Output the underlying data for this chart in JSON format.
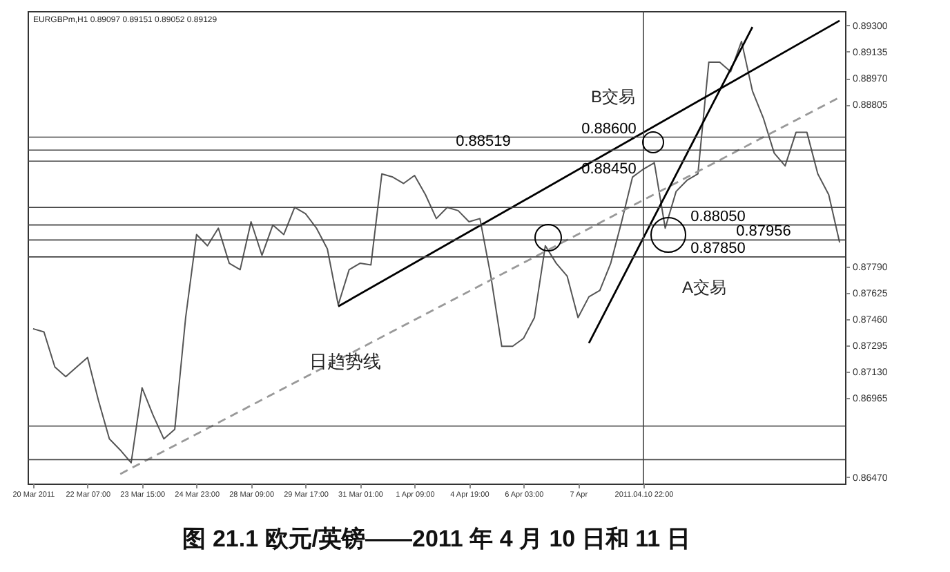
{
  "chart_data": {
    "type": "line",
    "title": "图 21.1 欧元/英镑——2011 年 4 月 10 日和 11 日",
    "categories": [
      "20 Mar 2011",
      null,
      null,
      null,
      null,
      "22 Mar 07:00",
      null,
      null,
      null,
      null,
      "23 Mar 15:00",
      null,
      null,
      null,
      null,
      "24 Mar 23:00",
      null,
      null,
      null,
      null,
      "28 Mar 09:00",
      null,
      null,
      null,
      null,
      "29 Mar 17:00",
      null,
      null,
      null,
      null,
      "31 Mar 01:00",
      null,
      null,
      null,
      null,
      "1 Apr 09:00",
      null,
      null,
      null,
      null,
      "4 Apr 19:00",
      null,
      null,
      null,
      null,
      "6 Apr 03:00",
      null,
      null,
      null,
      null,
      "7 Apr",
      null,
      null,
      null,
      null,
      null,
      "2011.04.10 22:00",
      null,
      null,
      null,
      null,
      null,
      null,
      null,
      null,
      null,
      null,
      null,
      null,
      null,
      null,
      null,
      null,
      null,
      null
    ],
    "series": [
      {
        "color": "#555555",
        "values": [
          0.874,
          0.8738,
          0.8716,
          0.871,
          0.8716,
          0.8722,
          0.8695,
          0.8671,
          0.8664,
          0.8656,
          0.8703,
          0.8686,
          0.8671,
          0.8677,
          0.8747,
          0.8799,
          0.8792,
          0.8803,
          0.8781,
          0.8777,
          0.8807,
          0.8786,
          0.8805,
          0.8799,
          0.8816,
          0.8812,
          0.8803,
          0.879,
          0.8755,
          0.8777,
          0.8781,
          0.878,
          0.8837,
          0.8835,
          0.8831,
          0.8836,
          0.8824,
          0.8809,
          0.8816,
          0.8814,
          0.8807,
          0.8809,
          0.8773,
          0.8729,
          0.8729,
          0.8734,
          0.8747,
          0.8792,
          0.8781,
          0.8773,
          0.8747,
          0.876,
          0.8764,
          0.8781,
          0.8807,
          0.8835,
          0.884,
          0.8844,
          0.8803,
          0.8826,
          0.8833,
          0.8837,
          0.8907,
          0.8907,
          0.8901,
          0.892,
          0.8889,
          0.8872,
          0.885,
          0.8842,
          0.8863,
          0.8863,
          0.8837,
          0.8824,
          0.8794
        ]
      },
      {
        "color": "#999999",
        "line_style": "dashed",
        "values": [
          null,
          null,
          null,
          null,
          null,
          null,
          null,
          null,
          0.8649,
          null,
          null,
          null,
          null,
          null,
          null,
          null,
          null,
          null,
          null,
          null,
          null,
          null,
          null,
          null,
          null,
          null,
          null,
          null,
          null,
          null,
          null,
          null,
          null,
          null,
          null,
          null,
          null,
          null,
          null,
          null,
          null,
          null,
          null,
          null,
          null,
          null,
          null,
          null,
          null,
          null,
          null,
          null,
          null,
          null,
          null,
          null,
          null,
          null,
          null,
          null,
          null,
          null,
          null,
          null,
          null,
          null,
          null,
          null,
          null,
          null,
          null,
          null,
          null,
          null,
          0.8885
        ]
      },
      {
        "color": "#000000",
        "values": [
          null,
          null,
          null,
          null,
          null,
          null,
          null,
          null,
          null,
          null,
          null,
          null,
          null,
          null,
          null,
          null,
          null,
          null,
          null,
          null,
          null,
          null,
          null,
          null,
          null,
          null,
          null,
          null,
          0.8754,
          null,
          null,
          null,
          null,
          null,
          null,
          null,
          null,
          null,
          null,
          null,
          null,
          null,
          null,
          null,
          null,
          null,
          null,
          null,
          null,
          null,
          null,
          null,
          null,
          null,
          null,
          null,
          null,
          null,
          null,
          null,
          null,
          null,
          null,
          null,
          null,
          null,
          null,
          null,
          null,
          null,
          null,
          null,
          null,
          null,
          0.8933
        ]
      },
      {
        "color": "#000000",
        "values": [
          null,
          null,
          null,
          null,
          null,
          null,
          null,
          null,
          null,
          null,
          null,
          null,
          null,
          null,
          null,
          null,
          null,
          null,
          null,
          null,
          null,
          null,
          null,
          null,
          null,
          null,
          null,
          null,
          null,
          null,
          null,
          null,
          null,
          null,
          null,
          null,
          null,
          null,
          null,
          null,
          null,
          null,
          null,
          null,
          null,
          null,
          null,
          null,
          null,
          null,
          null,
          0.8731,
          null,
          null,
          null,
          null,
          null,
          null,
          null,
          null,
          null,
          null,
          null,
          null,
          null,
          null,
          0.8929,
          null,
          null,
          null,
          null,
          null,
          null,
          null,
          null
        ]
      }
    ],
    "ylim": [
      0.8643,
      0.8939
    ],
    "yticks": [
      {
        "value": 0.893,
        "label": "0.89300"
      },
      {
        "value": 0.89135,
        "label": "0.89135"
      },
      {
        "value": 0.8897,
        "label": "0.88970"
      },
      {
        "value": 0.88805,
        "label": "0.88805"
      },
      {
        "value": 0.8779,
        "label": "0.87790"
      },
      {
        "value": 0.87625,
        "label": "0.87625"
      },
      {
        "value": 0.8746,
        "label": "0.87460"
      },
      {
        "value": 0.87295,
        "label": "0.87295"
      },
      {
        "value": 0.8713,
        "label": "0.87130"
      },
      {
        "value": 0.86965,
        "label": "0.86965"
      },
      {
        "value": 0.8647,
        "label": "0.86470"
      }
    ],
    "ref_lines": [
      {
        "axis": "y",
        "value": 0.886,
        "label": "0.88600",
        "color": "#444444"
      },
      {
        "axis": "y",
        "value": 0.88519,
        "label": "0.88519",
        "color": "#444444"
      },
      {
        "axis": "y",
        "value": 0.8845,
        "label": "0.88450",
        "color": "#444444"
      },
      {
        "axis": "y",
        "value": 0.8816,
        "label": null,
        "color": "#444444"
      },
      {
        "axis": "y",
        "value": 0.8805,
        "label": "0.88050",
        "color": "#444444"
      },
      {
        "axis": "y",
        "value": 0.87956,
        "label": "0.87956",
        "color": "#444444"
      },
      {
        "axis": "y",
        "value": 0.8785,
        "label": "0.87850",
        "color": "#444444"
      },
      {
        "axis": "y",
        "value": 0.8679,
        "label": null,
        "color": "#444444"
      },
      {
        "axis": "y",
        "value": 0.8658,
        "label": null,
        "color": "#444444"
      },
      {
        "axis": "x",
        "value": "2011.04.10 22:00",
        "label": null,
        "color": "#444444"
      }
    ],
    "annotations": [
      "EURGBPm,H1 0.89097 0.89151 0.89052 0.89129",
      "B交易",
      "A交易",
      "日趋势线"
    ],
    "grid": false,
    "marker": "none",
    "line_style": "solid"
  }
}
